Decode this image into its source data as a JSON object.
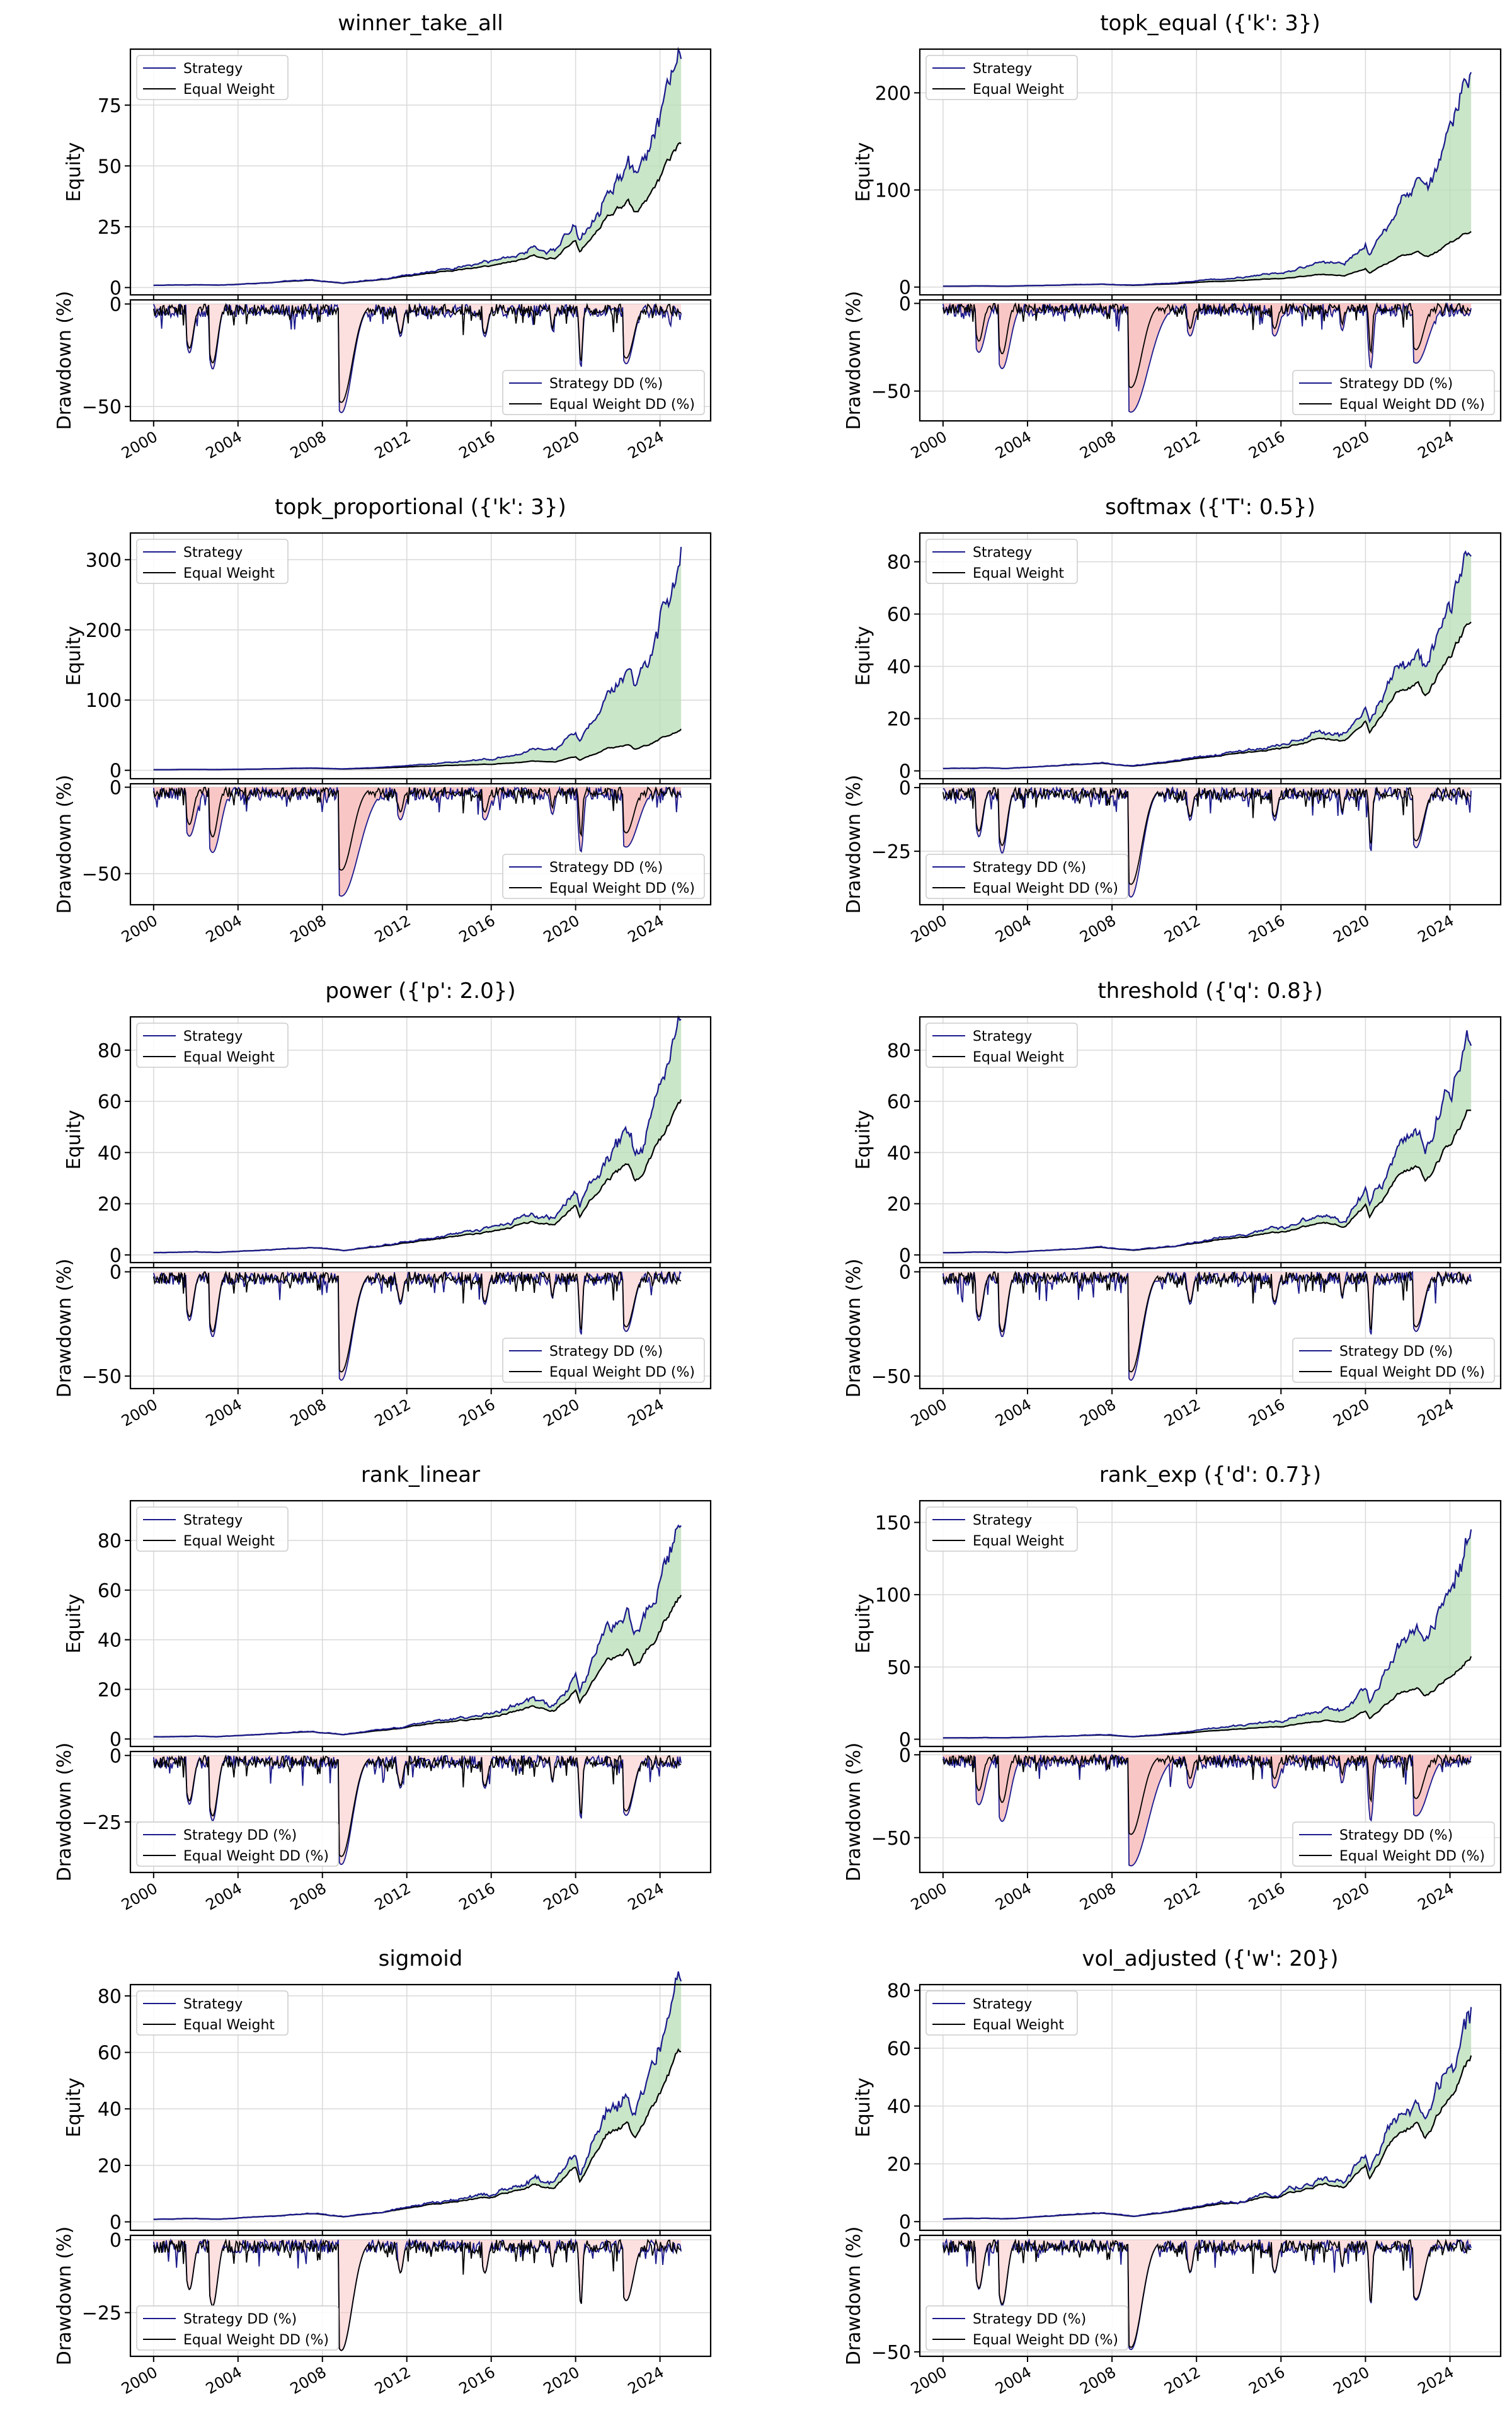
{
  "figure": {
    "colors": {
      "strategy": "#1a1a8c",
      "equal_weight": "#000000",
      "outperform_fill": "#b8ddb5",
      "underperform_fill": "#f8b8b8",
      "grid": "#d9d9d9"
    }
  },
  "chart_data": [
    {
      "type": "line",
      "title": "winner_take_all",
      "equity": {
        "ylabel": "Equity",
        "ylim": [
          -3,
          98
        ],
        "yticks": [
          0,
          25,
          50,
          75
        ],
        "grid": true,
        "legend_placement": "upper-left",
        "series": [
          {
            "name": "Strategy",
            "final": 93
          },
          {
            "name": "Equal Weight",
            "final": 59
          }
        ]
      },
      "drawdown": {
        "ylabel": "Drawdown (%)",
        "ylim": [
          -57,
          2
        ],
        "yticks": [
          0,
          -50
        ],
        "grid": true,
        "legend_placement": "lower-right",
        "series": [
          {
            "name": "Strategy DD (%)",
            "min": -53
          },
          {
            "name": "Equal Weight DD (%)",
            "min": -48
          }
        ]
      },
      "xticks": [
        2000,
        2004,
        2008,
        2012,
        2016,
        2020,
        2024
      ],
      "xlim": [
        1998.9,
        2026.4
      ]
    },
    {
      "type": "line",
      "title": "topk_equal ({'k': 3})",
      "equity": {
        "ylabel": "Equity",
        "ylim": [
          -8,
          245
        ],
        "yticks": [
          0,
          100,
          200
        ],
        "grid": true,
        "legend_placement": "upper-left",
        "series": [
          {
            "name": "Strategy",
            "final": 235
          },
          {
            "name": "Equal Weight",
            "final": 59
          }
        ]
      },
      "drawdown": {
        "ylabel": "Drawdown (%)",
        "ylim": [
          -67,
          2
        ],
        "yticks": [
          0,
          -50
        ],
        "grid": true,
        "legend_placement": "lower-right",
        "series": [
          {
            "name": "Strategy DD (%)",
            "min": -62
          },
          {
            "name": "Equal Weight DD (%)",
            "min": -48
          }
        ]
      },
      "xticks": [
        2000,
        2004,
        2008,
        2012,
        2016,
        2020,
        2024
      ],
      "xlim": [
        1998.9,
        2026.4
      ]
    },
    {
      "type": "line",
      "title": "topk_proportional ({'k': 3})",
      "equity": {
        "ylabel": "Equity",
        "ylim": [
          -12,
          338
        ],
        "yticks": [
          0,
          100,
          200,
          300
        ],
        "grid": true,
        "legend_placement": "upper-left",
        "series": [
          {
            "name": "Strategy",
            "final": 322
          },
          {
            "name": "Equal Weight",
            "final": 59
          }
        ]
      },
      "drawdown": {
        "ylabel": "Drawdown (%)",
        "ylim": [
          -68,
          2
        ],
        "yticks": [
          0,
          -50
        ],
        "grid": true,
        "legend_placement": "lower-right",
        "series": [
          {
            "name": "Strategy DD (%)",
            "min": -63
          },
          {
            "name": "Equal Weight DD (%)",
            "min": -48
          }
        ]
      },
      "xticks": [
        2000,
        2004,
        2008,
        2012,
        2016,
        2020,
        2024
      ],
      "xlim": [
        1998.9,
        2026.4
      ]
    },
    {
      "type": "line",
      "title": "softmax ({'T': 0.5})",
      "equity": {
        "ylabel": "Equity",
        "ylim": [
          -3,
          91
        ],
        "yticks": [
          0,
          20,
          40,
          60,
          80
        ],
        "grid": true,
        "legend_placement": "upper-left",
        "series": [
          {
            "name": "Strategy",
            "final": 86
          },
          {
            "name": "Equal Weight",
            "final": 58
          }
        ]
      },
      "drawdown": {
        "ylabel": "Drawdown (%)",
        "ylim": [
          -46,
          1.5
        ],
        "yticks": [
          0,
          -25
        ],
        "grid": true,
        "legend_placement": "lower-left",
        "series": [
          {
            "name": "Strategy DD (%)",
            "min": -43
          },
          {
            "name": "Equal Weight DD (%)",
            "min": -38
          }
        ]
      },
      "xticks": [
        2000,
        2004,
        2008,
        2012,
        2016,
        2020,
        2024
      ],
      "xlim": [
        1998.9,
        2026.4
      ]
    },
    {
      "type": "line",
      "title": "power ({'p': 2.0})",
      "equity": {
        "ylabel": "Equity",
        "ylim": [
          -3,
          93
        ],
        "yticks": [
          0,
          20,
          40,
          60,
          80
        ],
        "grid": true,
        "legend_placement": "upper-left",
        "series": [
          {
            "name": "Strategy",
            "final": 88
          },
          {
            "name": "Equal Weight",
            "final": 59
          }
        ]
      },
      "drawdown": {
        "ylabel": "Drawdown (%)",
        "ylim": [
          -56,
          2
        ],
        "yticks": [
          0,
          -50
        ],
        "grid": true,
        "legend_placement": "lower-right",
        "series": [
          {
            "name": "Strategy DD (%)",
            "min": -52
          },
          {
            "name": "Equal Weight DD (%)",
            "min": -48
          }
        ]
      },
      "xticks": [
        2000,
        2004,
        2008,
        2012,
        2016,
        2020,
        2024
      ],
      "xlim": [
        1998.9,
        2026.4
      ]
    },
    {
      "type": "line",
      "title": "threshold ({'q': 0.8})",
      "equity": {
        "ylabel": "Equity",
        "ylim": [
          -3,
          93
        ],
        "yticks": [
          0,
          20,
          40,
          60,
          80
        ],
        "grid": true,
        "legend_placement": "upper-left",
        "series": [
          {
            "name": "Strategy",
            "final": 88
          },
          {
            "name": "Equal Weight",
            "final": 58
          }
        ]
      },
      "drawdown": {
        "ylabel": "Drawdown (%)",
        "ylim": [
          -56,
          2
        ],
        "yticks": [
          0,
          -50
        ],
        "grid": true,
        "legend_placement": "lower-right",
        "series": [
          {
            "name": "Strategy DD (%)",
            "min": -52
          },
          {
            "name": "Equal Weight DD (%)",
            "min": -48
          }
        ]
      },
      "xticks": [
        2000,
        2004,
        2008,
        2012,
        2016,
        2020,
        2024
      ],
      "xlim": [
        1998.9,
        2026.4
      ]
    },
    {
      "type": "line",
      "title": "rank_linear",
      "equity": {
        "ylabel": "Equity",
        "ylim": [
          -3,
          96
        ],
        "yticks": [
          0,
          20,
          40,
          60,
          80
        ],
        "grid": true,
        "legend_placement": "upper-left",
        "series": [
          {
            "name": "Strategy",
            "final": 91
          },
          {
            "name": "Equal Weight",
            "final": 59
          }
        ]
      },
      "drawdown": {
        "ylabel": "Drawdown (%)",
        "ylim": [
          -44,
          1.5
        ],
        "yticks": [
          0,
          -25
        ],
        "grid": true,
        "legend_placement": "lower-left",
        "series": [
          {
            "name": "Strategy DD (%)",
            "min": -41
          },
          {
            "name": "Equal Weight DD (%)",
            "min": -38
          }
        ]
      },
      "xticks": [
        2000,
        2004,
        2008,
        2012,
        2016,
        2020,
        2024
      ],
      "xlim": [
        1998.9,
        2026.4
      ]
    },
    {
      "type": "line",
      "title": "rank_exp ({'d': 0.7})",
      "equity": {
        "ylabel": "Equity",
        "ylim": [
          -5,
          165
        ],
        "yticks": [
          0,
          50,
          100,
          150
        ],
        "grid": true,
        "legend_placement": "upper-left",
        "series": [
          {
            "name": "Strategy",
            "final": 158
          },
          {
            "name": "Equal Weight",
            "final": 59
          }
        ]
      },
      "drawdown": {
        "ylabel": "Drawdown (%)",
        "ylim": [
          -71,
          2
        ],
        "yticks": [
          0,
          -50
        ],
        "grid": true,
        "legend_placement": "lower-right",
        "series": [
          {
            "name": "Strategy DD (%)",
            "min": -67
          },
          {
            "name": "Equal Weight DD (%)",
            "min": -48
          }
        ]
      },
      "xticks": [
        2000,
        2004,
        2008,
        2012,
        2016,
        2020,
        2024
      ],
      "xlim": [
        1998.9,
        2026.4
      ]
    },
    {
      "type": "line",
      "title": "sigmoid",
      "equity": {
        "ylabel": "Equity",
        "ylim": [
          -3,
          84
        ],
        "yticks": [
          0,
          20,
          40,
          60,
          80
        ],
        "grid": true,
        "legend_placement": "upper-left",
        "series": [
          {
            "name": "Strategy",
            "final": 80
          },
          {
            "name": "Equal Weight",
            "final": 59
          }
        ]
      },
      "drawdown": {
        "ylabel": "Drawdown (%)",
        "ylim": [
          -40,
          1.5
        ],
        "yticks": [
          0,
          -25
        ],
        "grid": true,
        "legend_placement": "lower-left",
        "series": [
          {
            "name": "Strategy DD (%)",
            "min": -38
          },
          {
            "name": "Equal Weight DD (%)",
            "min": -38
          }
        ]
      },
      "xticks": [
        2000,
        2004,
        2008,
        2012,
        2016,
        2020,
        2024
      ],
      "xlim": [
        1998.9,
        2026.4
      ]
    },
    {
      "type": "line",
      "title": "vol_adjusted ({'w': 20})",
      "equity": {
        "ylabel": "Equity",
        "ylim": [
          -3,
          82
        ],
        "yticks": [
          0,
          20,
          40,
          60,
          80
        ],
        "grid": true,
        "legend_placement": "upper-left",
        "series": [
          {
            "name": "Strategy",
            "final": 77
          },
          {
            "name": "Equal Weight",
            "final": 59
          }
        ]
      },
      "drawdown": {
        "ylabel": "Drawdown (%)",
        "ylim": [
          -52,
          2
        ],
        "yticks": [
          0,
          -50
        ],
        "grid": true,
        "legend_placement": "lower-left",
        "series": [
          {
            "name": "Strategy DD (%)",
            "min": -49
          },
          {
            "name": "Equal Weight DD (%)",
            "min": -48
          }
        ]
      },
      "xticks": [
        2000,
        2004,
        2008,
        2012,
        2016,
        2020,
        2024
      ],
      "xlim": [
        1998.9,
        2026.4
      ]
    }
  ]
}
